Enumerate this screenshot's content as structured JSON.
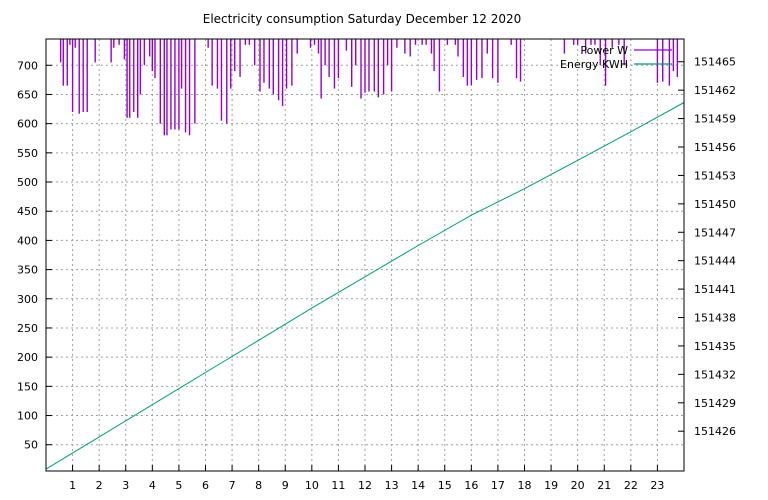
{
  "chart_data": {
    "type": "line",
    "title": "Electricity consumption Saturday December 12 2020",
    "xlim": [
      0,
      24
    ],
    "x_ticks": [
      1,
      2,
      3,
      4,
      5,
      6,
      7,
      8,
      9,
      10,
      11,
      12,
      13,
      14,
      15,
      16,
      17,
      18,
      19,
      20,
      21,
      22,
      23
    ],
    "y_left_lim": [
      5,
      745
    ],
    "y_left_ticks": [
      50,
      100,
      150,
      200,
      250,
      300,
      350,
      400,
      450,
      500,
      550,
      600,
      650,
      700
    ],
    "y_right_lim": [
      151421.8,
      151467.4
    ],
    "y_right_ticks": [
      151426,
      151429,
      151432,
      151435,
      151438,
      151441,
      151444,
      151447,
      151450,
      151453,
      151456,
      151459,
      151462,
      151465
    ],
    "grid": true,
    "legend_position": "top-right",
    "series": [
      {
        "name": "Power W",
        "axis": "left",
        "color": "#9400d3",
        "style": "impulse-from-top",
        "points": [
          [
            0.55,
            705
          ],
          [
            0.65,
            665
          ],
          [
            0.8,
            665
          ],
          [
            0.9,
            735
          ],
          [
            1.0,
            620
          ],
          [
            1.1,
            730
          ],
          [
            1.25,
            617
          ],
          [
            1.4,
            620
          ],
          [
            1.55,
            620
          ],
          [
            1.85,
            705
          ],
          [
            2.45,
            705
          ],
          [
            2.55,
            730
          ],
          [
            2.75,
            735
          ],
          [
            2.95,
            710
          ],
          [
            3.05,
            610
          ],
          [
            3.15,
            610
          ],
          [
            3.3,
            620
          ],
          [
            3.45,
            610
          ],
          [
            3.55,
            650
          ],
          [
            3.7,
            700
          ],
          [
            3.9,
            715
          ],
          [
            4.0,
            690
          ],
          [
            4.1,
            678
          ],
          [
            4.3,
            600
          ],
          [
            4.45,
            580
          ],
          [
            4.55,
            580
          ],
          [
            4.7,
            590
          ],
          [
            4.85,
            590
          ],
          [
            5.0,
            590
          ],
          [
            5.1,
            660
          ],
          [
            5.25,
            585
          ],
          [
            5.4,
            580
          ],
          [
            5.6,
            600
          ],
          [
            6.1,
            730
          ],
          [
            6.25,
            665
          ],
          [
            6.45,
            660
          ],
          [
            6.6,
            605
          ],
          [
            6.8,
            600
          ],
          [
            6.95,
            660
          ],
          [
            7.1,
            690
          ],
          [
            7.3,
            680
          ],
          [
            7.5,
            735
          ],
          [
            7.65,
            735
          ],
          [
            7.85,
            700
          ],
          [
            8.05,
            655
          ],
          [
            8.2,
            670
          ],
          [
            8.4,
            660
          ],
          [
            8.55,
            650
          ],
          [
            8.75,
            640
          ],
          [
            8.9,
            630
          ],
          [
            9.05,
            660
          ],
          [
            9.25,
            665
          ],
          [
            9.45,
            720
          ],
          [
            9.95,
            730
          ],
          [
            10.1,
            735
          ],
          [
            10.25,
            720
          ],
          [
            10.35,
            643
          ],
          [
            10.5,
            700
          ],
          [
            10.65,
            680
          ],
          [
            10.85,
            660
          ],
          [
            11.0,
            678
          ],
          [
            11.3,
            725
          ],
          [
            11.5,
            663
          ],
          [
            11.65,
            700
          ],
          [
            11.85,
            643
          ],
          [
            12.0,
            653
          ],
          [
            12.15,
            655
          ],
          [
            12.35,
            655
          ],
          [
            12.5,
            645
          ],
          [
            12.7,
            650
          ],
          [
            12.85,
            700
          ],
          [
            13.0,
            655
          ],
          [
            13.2,
            730
          ],
          [
            13.5,
            720
          ],
          [
            13.7,
            715
          ],
          [
            13.9,
            735
          ],
          [
            14.15,
            735
          ],
          [
            14.3,
            735
          ],
          [
            14.5,
            720
          ],
          [
            14.6,
            690
          ],
          [
            14.8,
            655
          ],
          [
            15.1,
            735
          ],
          [
            15.4,
            735
          ],
          [
            15.5,
            715
          ],
          [
            15.7,
            680
          ],
          [
            15.85,
            665
          ],
          [
            16.0,
            666
          ],
          [
            16.2,
            675
          ],
          [
            16.4,
            678
          ],
          [
            16.6,
            720
          ],
          [
            16.8,
            678
          ],
          [
            17.0,
            670
          ],
          [
            17.5,
            735
          ],
          [
            17.7,
            678
          ],
          [
            17.85,
            672
          ],
          [
            19.5,
            720
          ],
          [
            19.85,
            735
          ],
          [
            20.0,
            735
          ],
          [
            20.3,
            720
          ],
          [
            20.5,
            735
          ],
          [
            20.65,
            735
          ],
          [
            20.85,
            700
          ],
          [
            21.05,
            665
          ],
          [
            21.3,
            730
          ],
          [
            21.55,
            735
          ],
          [
            21.75,
            700
          ],
          [
            23.0,
            670
          ],
          [
            23.2,
            672
          ],
          [
            23.45,
            665
          ],
          [
            23.6,
            690
          ],
          [
            23.75,
            680
          ]
        ]
      },
      {
        "name": "Energy KWH",
        "axis": "right",
        "color": "#009e73",
        "style": "line",
        "points": [
          [
            0,
            151422.0
          ],
          [
            2,
            151425.4
          ],
          [
            4,
            151428.8
          ],
          [
            6,
            151432.2
          ],
          [
            8,
            151435.6
          ],
          [
            10,
            151439.0
          ],
          [
            12,
            151442.3
          ],
          [
            14,
            151445.6
          ],
          [
            16,
            151448.8
          ],
          [
            18,
            151451.6
          ],
          [
            20,
            151454.6
          ],
          [
            22,
            151457.6
          ],
          [
            24,
            151460.7
          ]
        ]
      }
    ]
  }
}
